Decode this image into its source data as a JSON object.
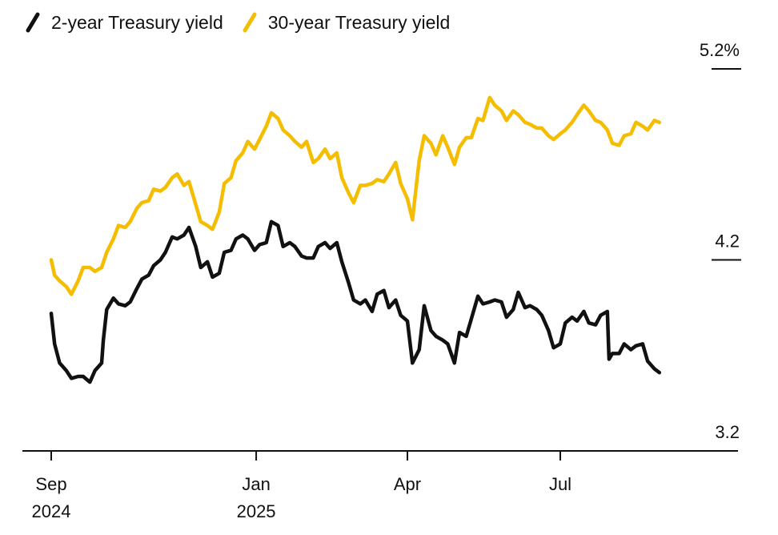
{
  "chart_data": {
    "type": "line",
    "title": "",
    "xlabel": "",
    "ylabel": "",
    "ylim": [
      3.2,
      5.2
    ],
    "y_ticks": [
      {
        "value": 5.2,
        "label": "5.2%"
      },
      {
        "value": 4.2,
        "label": "4.2"
      },
      {
        "value": 3.2,
        "label": "3.2"
      }
    ],
    "x_ticks": [
      {
        "date": "2024-09-01",
        "label": "Sep",
        "sublabel": "2024"
      },
      {
        "date": "2025-01-01",
        "label": "Jan",
        "sublabel": "2025"
      },
      {
        "date": "2025-04-01",
        "label": "Apr",
        "sublabel": ""
      },
      {
        "date": "2025-07-01",
        "label": "Jul",
        "sublabel": ""
      }
    ],
    "legend_position": "top-left",
    "grid": false,
    "series": [
      {
        "name": "2-year Treasury yield",
        "color": "#111111",
        "points": [
          [
            "2024-09-01",
            3.92
          ],
          [
            "2024-09-03",
            3.76
          ],
          [
            "2024-09-06",
            3.66
          ],
          [
            "2024-09-10",
            3.62
          ],
          [
            "2024-09-13",
            3.58
          ],
          [
            "2024-09-17",
            3.59
          ],
          [
            "2024-09-20",
            3.59
          ],
          [
            "2024-09-24",
            3.56
          ],
          [
            "2024-09-27",
            3.62
          ],
          [
            "2024-10-01",
            3.66
          ],
          [
            "2024-10-02",
            3.78
          ],
          [
            "2024-10-04",
            3.94
          ],
          [
            "2024-10-08",
            4.0
          ],
          [
            "2024-10-11",
            3.97
          ],
          [
            "2024-10-15",
            3.96
          ],
          [
            "2024-10-18",
            3.98
          ],
          [
            "2024-10-22",
            4.05
          ],
          [
            "2024-10-25",
            4.1
          ],
          [
            "2024-10-29",
            4.12
          ],
          [
            "2024-11-01",
            4.17
          ],
          [
            "2024-11-05",
            4.2
          ],
          [
            "2024-11-08",
            4.24
          ],
          [
            "2024-11-12",
            4.32
          ],
          [
            "2024-11-15",
            4.31
          ],
          [
            "2024-11-19",
            4.33
          ],
          [
            "2024-11-22",
            4.37
          ],
          [
            "2024-11-26",
            4.27
          ],
          [
            "2024-11-29",
            4.16
          ],
          [
            "2024-12-03",
            4.19
          ],
          [
            "2024-12-06",
            4.11
          ],
          [
            "2024-12-10",
            4.13
          ],
          [
            "2024-12-13",
            4.24
          ],
          [
            "2024-12-17",
            4.25
          ],
          [
            "2024-12-20",
            4.31
          ],
          [
            "2024-12-24",
            4.33
          ],
          [
            "2024-12-27",
            4.31
          ],
          [
            "2024-12-31",
            4.25
          ],
          [
            "2025-01-03",
            4.28
          ],
          [
            "2025-01-07",
            4.29
          ],
          [
            "2025-01-10",
            4.4
          ],
          [
            "2025-01-14",
            4.38
          ],
          [
            "2025-01-17",
            4.27
          ],
          [
            "2025-01-21",
            4.29
          ],
          [
            "2025-01-24",
            4.27
          ],
          [
            "2025-01-28",
            4.22
          ],
          [
            "2025-01-31",
            4.21
          ],
          [
            "2025-02-04",
            4.21
          ],
          [
            "2025-02-07",
            4.27
          ],
          [
            "2025-02-11",
            4.29
          ],
          [
            "2025-02-14",
            4.26
          ],
          [
            "2025-02-18",
            4.29
          ],
          [
            "2025-02-21",
            4.19
          ],
          [
            "2025-02-25",
            4.08
          ],
          [
            "2025-02-28",
            3.99
          ],
          [
            "2025-03-04",
            3.97
          ],
          [
            "2025-03-07",
            3.99
          ],
          [
            "2025-03-11",
            3.93
          ],
          [
            "2025-03-14",
            4.02
          ],
          [
            "2025-03-18",
            4.04
          ],
          [
            "2025-03-21",
            3.95
          ],
          [
            "2025-03-25",
            3.99
          ],
          [
            "2025-03-28",
            3.91
          ],
          [
            "2025-04-01",
            3.88
          ],
          [
            "2025-04-04",
            3.66
          ],
          [
            "2025-04-08",
            3.73
          ],
          [
            "2025-04-11",
            3.96
          ],
          [
            "2025-04-15",
            3.83
          ],
          [
            "2025-04-18",
            3.8
          ],
          [
            "2025-04-22",
            3.78
          ],
          [
            "2025-04-25",
            3.76
          ],
          [
            "2025-04-29",
            3.66
          ],
          [
            "2025-05-02",
            3.82
          ],
          [
            "2025-05-06",
            3.8
          ],
          [
            "2025-05-09",
            3.89
          ],
          [
            "2025-05-13",
            4.01
          ],
          [
            "2025-05-16",
            3.97
          ],
          [
            "2025-05-20",
            3.98
          ],
          [
            "2025-05-23",
            3.99
          ],
          [
            "2025-05-27",
            3.98
          ],
          [
            "2025-05-30",
            3.9
          ],
          [
            "2025-06-03",
            3.94
          ],
          [
            "2025-06-06",
            4.03
          ],
          [
            "2025-06-10",
            3.95
          ],
          [
            "2025-06-13",
            3.96
          ],
          [
            "2025-06-17",
            3.94
          ],
          [
            "2025-06-20",
            3.91
          ],
          [
            "2025-06-24",
            3.83
          ],
          [
            "2025-06-27",
            3.74
          ],
          [
            "2025-07-01",
            3.76
          ],
          [
            "2025-07-04",
            3.87
          ],
          [
            "2025-07-08",
            3.9
          ],
          [
            "2025-07-11",
            3.88
          ],
          [
            "2025-07-15",
            3.93
          ],
          [
            "2025-07-18",
            3.87
          ],
          [
            "2025-07-22",
            3.86
          ],
          [
            "2025-07-25",
            3.91
          ],
          [
            "2025-07-29",
            3.93
          ],
          [
            "2025-07-30",
            3.68
          ],
          [
            "2025-08-01",
            3.71
          ],
          [
            "2025-08-05",
            3.71
          ],
          [
            "2025-08-08",
            3.76
          ],
          [
            "2025-08-12",
            3.73
          ],
          [
            "2025-08-15",
            3.75
          ],
          [
            "2025-08-19",
            3.76
          ],
          [
            "2025-08-22",
            3.67
          ],
          [
            "2025-08-26",
            3.63
          ],
          [
            "2025-08-29",
            3.61
          ]
        ]
      },
      {
        "name": "30-year Treasury yield",
        "color": "#f5bd00",
        "points": [
          [
            "2024-09-01",
            4.2
          ],
          [
            "2024-09-03",
            4.12
          ],
          [
            "2024-09-06",
            4.09
          ],
          [
            "2024-09-10",
            4.06
          ],
          [
            "2024-09-13",
            4.02
          ],
          [
            "2024-09-17",
            4.09
          ],
          [
            "2024-09-20",
            4.16
          ],
          [
            "2024-09-24",
            4.16
          ],
          [
            "2024-09-27",
            4.14
          ],
          [
            "2024-10-01",
            4.16
          ],
          [
            "2024-10-04",
            4.24
          ],
          [
            "2024-10-08",
            4.31
          ],
          [
            "2024-10-11",
            4.38
          ],
          [
            "2024-10-15",
            4.37
          ],
          [
            "2024-10-18",
            4.4
          ],
          [
            "2024-10-22",
            4.47
          ],
          [
            "2024-10-25",
            4.5
          ],
          [
            "2024-10-29",
            4.51
          ],
          [
            "2024-11-01",
            4.57
          ],
          [
            "2024-11-05",
            4.56
          ],
          [
            "2024-11-08",
            4.58
          ],
          [
            "2024-11-12",
            4.63
          ],
          [
            "2024-11-15",
            4.65
          ],
          [
            "2024-11-19",
            4.59
          ],
          [
            "2024-11-22",
            4.61
          ],
          [
            "2024-11-26",
            4.49
          ],
          [
            "2024-11-29",
            4.4
          ],
          [
            "2024-12-03",
            4.38
          ],
          [
            "2024-12-06",
            4.36
          ],
          [
            "2024-12-10",
            4.45
          ],
          [
            "2024-12-13",
            4.6
          ],
          [
            "2024-12-17",
            4.63
          ],
          [
            "2024-12-20",
            4.72
          ],
          [
            "2024-12-24",
            4.76
          ],
          [
            "2024-12-27",
            4.82
          ],
          [
            "2024-12-31",
            4.78
          ],
          [
            "2025-01-03",
            4.83
          ],
          [
            "2025-01-07",
            4.9
          ],
          [
            "2025-01-10",
            4.97
          ],
          [
            "2025-01-14",
            4.94
          ],
          [
            "2025-01-17",
            4.88
          ],
          [
            "2025-01-21",
            4.85
          ],
          [
            "2025-01-24",
            4.82
          ],
          [
            "2025-01-28",
            4.79
          ],
          [
            "2025-01-31",
            4.82
          ],
          [
            "2025-02-04",
            4.71
          ],
          [
            "2025-02-07",
            4.73
          ],
          [
            "2025-02-11",
            4.78
          ],
          [
            "2025-02-14",
            4.73
          ],
          [
            "2025-02-18",
            4.76
          ],
          [
            "2025-02-21",
            4.63
          ],
          [
            "2025-02-25",
            4.55
          ],
          [
            "2025-02-28",
            4.5
          ],
          [
            "2025-03-04",
            4.59
          ],
          [
            "2025-03-07",
            4.59
          ],
          [
            "2025-03-11",
            4.6
          ],
          [
            "2025-03-14",
            4.62
          ],
          [
            "2025-03-18",
            4.61
          ],
          [
            "2025-03-21",
            4.65
          ],
          [
            "2025-03-25",
            4.71
          ],
          [
            "2025-03-28",
            4.6
          ],
          [
            "2025-04-01",
            4.52
          ],
          [
            "2025-04-04",
            4.41
          ],
          [
            "2025-04-08",
            4.72
          ],
          [
            "2025-04-11",
            4.85
          ],
          [
            "2025-04-15",
            4.81
          ],
          [
            "2025-04-18",
            4.75
          ],
          [
            "2025-04-22",
            4.85
          ],
          [
            "2025-04-25",
            4.79
          ],
          [
            "2025-04-29",
            4.7
          ],
          [
            "2025-05-02",
            4.79
          ],
          [
            "2025-05-06",
            4.84
          ],
          [
            "2025-05-09",
            4.84
          ],
          [
            "2025-05-13",
            4.94
          ],
          [
            "2025-05-16",
            4.93
          ],
          [
            "2025-05-20",
            5.05
          ],
          [
            "2025-05-23",
            5.01
          ],
          [
            "2025-05-27",
            4.98
          ],
          [
            "2025-05-30",
            4.93
          ],
          [
            "2025-06-03",
            4.98
          ],
          [
            "2025-06-06",
            4.96
          ],
          [
            "2025-06-10",
            4.92
          ],
          [
            "2025-06-13",
            4.91
          ],
          [
            "2025-06-17",
            4.89
          ],
          [
            "2025-06-20",
            4.89
          ],
          [
            "2025-06-24",
            4.85
          ],
          [
            "2025-06-27",
            4.83
          ],
          [
            "2025-07-01",
            4.86
          ],
          [
            "2025-07-04",
            4.88
          ],
          [
            "2025-07-08",
            4.92
          ],
          [
            "2025-07-11",
            4.96
          ],
          [
            "2025-07-15",
            5.01
          ],
          [
            "2025-07-18",
            4.98
          ],
          [
            "2025-07-22",
            4.93
          ],
          [
            "2025-07-25",
            4.92
          ],
          [
            "2025-07-29",
            4.88
          ],
          [
            "2025-08-01",
            4.81
          ],
          [
            "2025-08-05",
            4.8
          ],
          [
            "2025-08-08",
            4.85
          ],
          [
            "2025-08-12",
            4.86
          ],
          [
            "2025-08-15",
            4.92
          ],
          [
            "2025-08-19",
            4.9
          ],
          [
            "2025-08-22",
            4.88
          ],
          [
            "2025-08-26",
            4.93
          ],
          [
            "2025-08-29",
            4.92
          ]
        ]
      }
    ]
  }
}
